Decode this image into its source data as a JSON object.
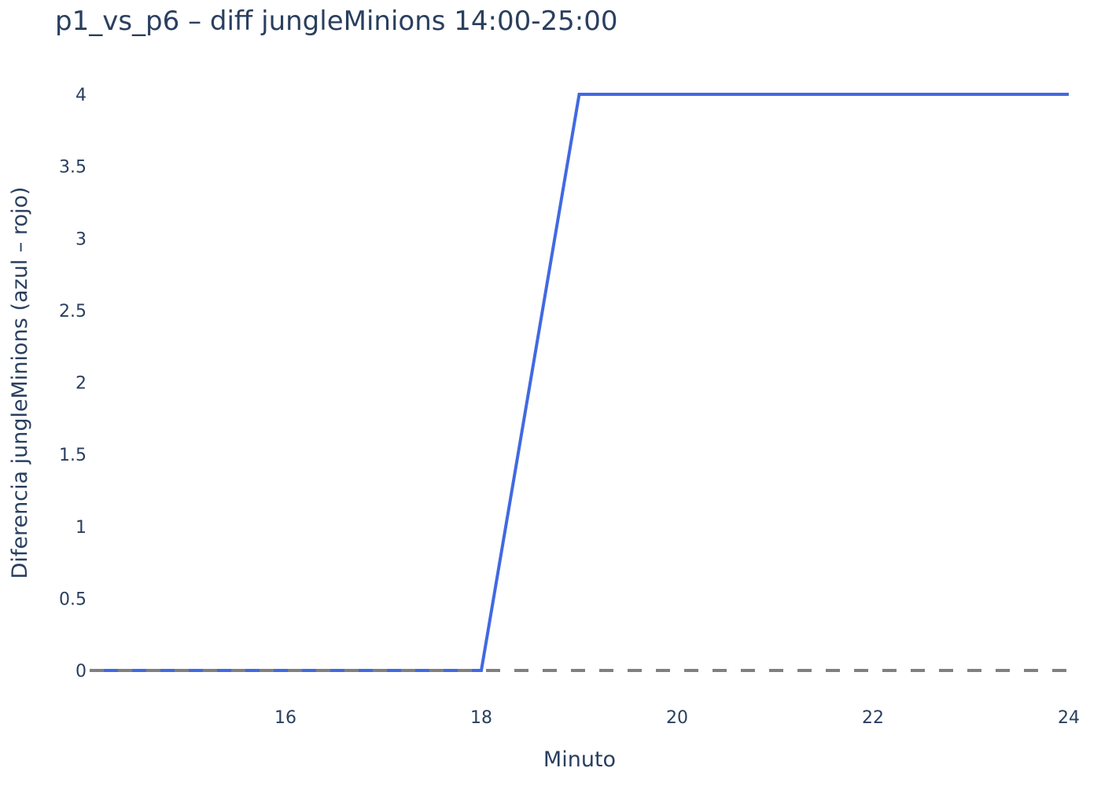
{
  "chart_data": {
    "type": "line",
    "title": "p1_vs_p6 – diff jungleMinions 14:00-25:00",
    "xlabel": "Minuto",
    "ylabel": "Diferencia jungleMinions (azul – rojo)",
    "xlim": [
      14,
      24
    ],
    "ylim": [
      0,
      4
    ],
    "x_ticks": [
      16,
      18,
      20,
      22,
      24
    ],
    "y_ticks": [
      0,
      0.5,
      1,
      1.5,
      2,
      2.5,
      3,
      3.5,
      4
    ],
    "x_tick_labels": [
      "16",
      "18",
      "20",
      "22",
      "24"
    ],
    "y_tick_labels": [
      "0",
      "0.5",
      "1",
      "1.5",
      "2",
      "2.5",
      "3",
      "3.5",
      "4"
    ],
    "grid": false,
    "series": [
      {
        "x": [
          14,
          15,
          16,
          17,
          18,
          19,
          20,
          21,
          22,
          23,
          24
        ],
        "values": [
          0,
          0,
          0,
          0,
          0,
          4,
          4,
          4,
          4,
          4,
          4
        ],
        "color": "#4169e1",
        "style": "solid"
      }
    ],
    "reference_line": {
      "y": 0,
      "color": "#808080",
      "style": "dashed"
    }
  }
}
